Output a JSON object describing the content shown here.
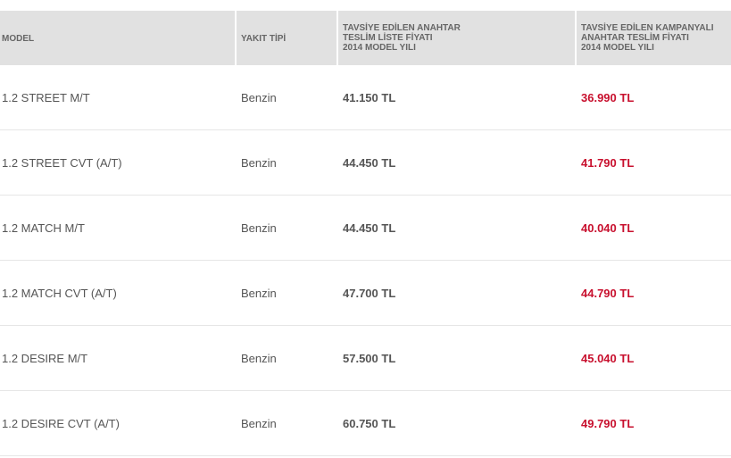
{
  "headers": {
    "model": "MODEL",
    "fuel": "YAKIT TİPİ",
    "list_price": [
      "TAVSİYE EDİLEN ANAHTAR",
      "TESLİM LİSTE FİYATI",
      "2014 MODEL YILI"
    ],
    "campaign_price": [
      "TAVSİYE EDİLEN KAMPANYALI",
      "ANAHTAR TESLİM FİYATI",
      "2014 MODEL YILI"
    ]
  },
  "rows": [
    {
      "model": "1.2 STREET M/T",
      "fuel": "Benzin",
      "list_price": "41.150 TL",
      "campaign_price": "36.990 TL"
    },
    {
      "model": "1.2 STREET CVT (A/T)",
      "fuel": "Benzin",
      "list_price": "44.450 TL",
      "campaign_price": "41.790 TL"
    },
    {
      "model": "1.2 MATCH M/T",
      "fuel": "Benzin",
      "list_price": "44.450 TL",
      "campaign_price": "40.040 TL"
    },
    {
      "model": "1.2 MATCH CVT (A/T)",
      "fuel": "Benzin",
      "list_price": "47.700 TL",
      "campaign_price": "44.790 TL"
    },
    {
      "model": "1.2 DESIRE M/T",
      "fuel": "Benzin",
      "list_price": "57.500 TL",
      "campaign_price": "45.040 TL"
    },
    {
      "model": "1.2 DESIRE CVT (A/T)",
      "fuel": "Benzin",
      "list_price": "60.750 TL",
      "campaign_price": "49.790 TL"
    }
  ],
  "colors": {
    "header_bg": "#e1e1e1",
    "campaign_price": "#c8102e",
    "text": "#555555"
  }
}
